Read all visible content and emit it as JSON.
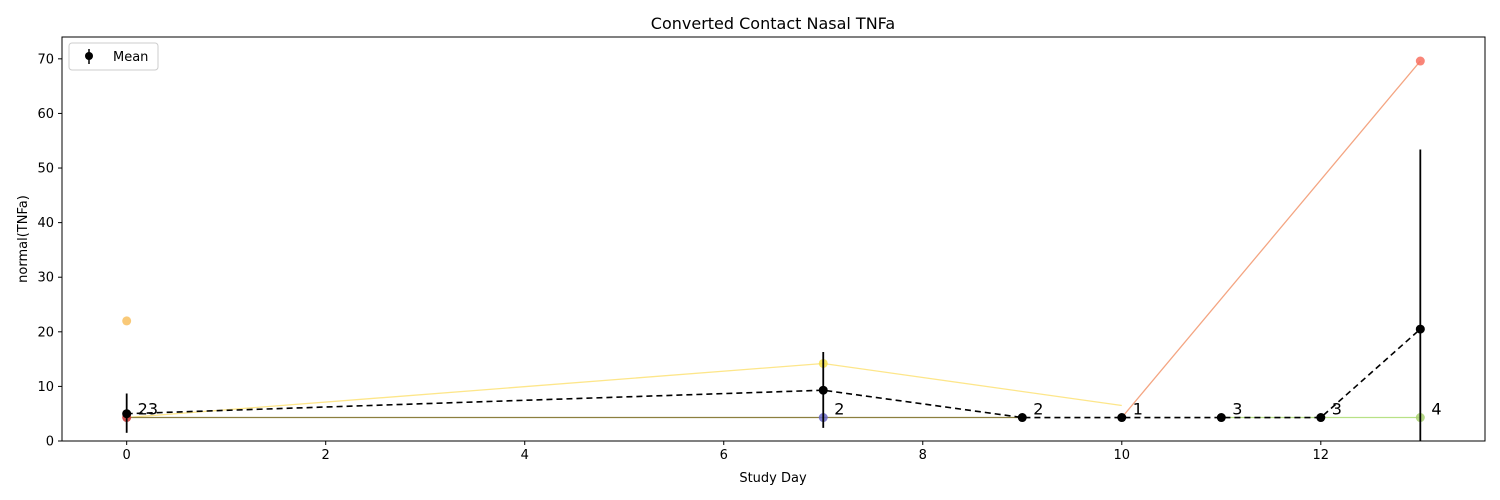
{
  "chart_data": {
    "type": "line",
    "title": "Converted Contact Nasal TNFa",
    "xlabel": "Study Day",
    "ylabel": "normal(TNFa)",
    "xlim": [
      -0.65,
      13.65
    ],
    "ylim": [
      0,
      74
    ],
    "xticks": [
      0,
      2,
      4,
      6,
      8,
      10,
      12
    ],
    "yticks": [
      0,
      10,
      20,
      30,
      40,
      50,
      60,
      70
    ],
    "grid": false,
    "legend": {
      "position": "top-left",
      "entries": [
        "Mean"
      ]
    },
    "colors": {
      "mean": "#000000",
      "series_red": "#f4a582",
      "series_yellow": "#fde68a",
      "series_green": "#b8e186",
      "series_olive": "#8c7f3f",
      "point_red": "#f87060",
      "point_orange": "#f8c060",
      "point_yellow": "#f5e050",
      "point_blue": "#6a6ac8",
      "point_darkred": "#c83232",
      "point_green": "#a8d070"
    },
    "series": [
      {
        "color_key": "series_yellow",
        "x": [
          0,
          7,
          10
        ],
        "y": [
          4.3,
          14.2,
          6.5
        ]
      },
      {
        "color_key": "series_red",
        "x": [
          10,
          13
        ],
        "y": [
          4.3,
          69.6
        ]
      },
      {
        "color_key": "series_green",
        "x": [
          11,
          12,
          13
        ],
        "y": [
          4.3,
          4.3,
          4.3
        ]
      },
      {
        "color_key": "series_olive",
        "x": [
          0,
          9
        ],
        "y": [
          4.3,
          4.3
        ]
      }
    ],
    "points": [
      {
        "x": 0,
        "y": 22.0,
        "color_key": "point_orange"
      },
      {
        "x": 0,
        "y": 4.3,
        "color_key": "point_darkred"
      },
      {
        "x": 7,
        "y": 14.2,
        "color_key": "point_yellow"
      },
      {
        "x": 7,
        "y": 4.3,
        "color_key": "point_blue"
      },
      {
        "x": 13,
        "y": 69.6,
        "color_key": "point_red"
      },
      {
        "x": 13,
        "y": 4.3,
        "color_key": "point_green"
      }
    ],
    "mean": {
      "name": "Mean",
      "x": [
        0,
        7,
        9,
        10,
        11,
        12,
        13
      ],
      "y": [
        5.0,
        9.3,
        4.3,
        4.3,
        4.3,
        4.3,
        20.5
      ],
      "err_low": [
        1.5,
        2.4,
        4.3,
        4.3,
        4.3,
        4.3,
        0
      ],
      "err_high": [
        8.7,
        16.3,
        4.3,
        4.3,
        4.3,
        4.3,
        53.4
      ],
      "counts": [
        "23",
        "2",
        "2",
        "1",
        "3",
        "3",
        "4"
      ]
    }
  }
}
